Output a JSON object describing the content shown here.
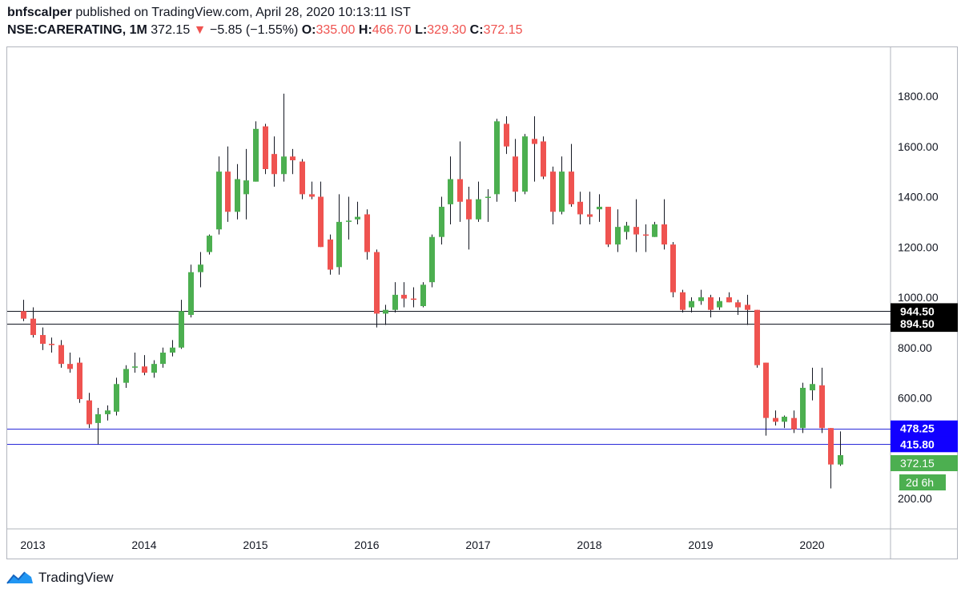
{
  "header": {
    "author": "bnfscalper",
    "published": "published on TradingView.com, April 28, 2020 10:13:11 IST",
    "symbol": "NSE:CARERATING, 1M",
    "last": "372.15",
    "arrow": "▼",
    "change": "−5.85 (−1.55%)",
    "o_label": "O:",
    "o_val": "335.00",
    "h_label": "H:",
    "h_val": "466.70",
    "l_label": "L:",
    "l_val": "329.30",
    "c_label": "C:",
    "c_val": "372.15"
  },
  "footer": {
    "brand": "TradingView"
  },
  "colors": {
    "up": "#4caf50",
    "down": "#ef5350",
    "support_black": "#131722",
    "support_blue": "#2b2bd9",
    "blue_label": "#0a00ff",
    "price_label": "#4caf50"
  },
  "chart_data": {
    "type": "candlestick",
    "interval": "1M",
    "ylim": [
      90,
      1900
    ],
    "y_ticks": [
      200,
      400,
      600,
      800,
      1000,
      1200,
      1400,
      1600,
      1800
    ],
    "y_tick_labels": [
      "200.00",
      "",
      "600.00",
      "800.00",
      "1000.00",
      "1200.00",
      "1400.00",
      "1600.00",
      "1800.00"
    ],
    "x_tick_labels": [
      {
        "label": "2013",
        "date": "2013-01"
      },
      {
        "label": "2014",
        "date": "2014-01"
      },
      {
        "label": "2015",
        "date": "2015-01"
      },
      {
        "label": "2016",
        "date": "2016-01"
      },
      {
        "label": "2017",
        "date": "2017-01"
      },
      {
        "label": "2018",
        "date": "2018-01"
      },
      {
        "label": "2019",
        "date": "2019-01"
      },
      {
        "label": "2020",
        "date": "2020-01"
      }
    ],
    "candles": [
      {
        "t": "2012-12",
        "o": 945,
        "h": 990,
        "l": 905,
        "c": 915
      },
      {
        "t": "2013-01",
        "o": 915,
        "h": 960,
        "l": 840,
        "c": 850
      },
      {
        "t": "2013-02",
        "o": 850,
        "h": 880,
        "l": 790,
        "c": 815
      },
      {
        "t": "2013-03",
        "o": 815,
        "h": 840,
        "l": 780,
        "c": 810
      },
      {
        "t": "2013-04",
        "o": 810,
        "h": 830,
        "l": 720,
        "c": 735
      },
      {
        "t": "2013-05",
        "o": 735,
        "h": 780,
        "l": 700,
        "c": 715
      },
      {
        "t": "2013-06",
        "o": 740,
        "h": 760,
        "l": 580,
        "c": 595
      },
      {
        "t": "2013-07",
        "o": 590,
        "h": 620,
        "l": 480,
        "c": 495
      },
      {
        "t": "2013-08",
        "o": 500,
        "h": 560,
        "l": 415,
        "c": 535
      },
      {
        "t": "2013-09",
        "o": 535,
        "h": 570,
        "l": 510,
        "c": 550
      },
      {
        "t": "2013-10",
        "o": 545,
        "h": 680,
        "l": 530,
        "c": 655
      },
      {
        "t": "2013-11",
        "o": 660,
        "h": 730,
        "l": 640,
        "c": 715
      },
      {
        "t": "2013-12",
        "o": 720,
        "h": 780,
        "l": 700,
        "c": 725
      },
      {
        "t": "2014-01",
        "o": 725,
        "h": 770,
        "l": 690,
        "c": 700
      },
      {
        "t": "2014-02",
        "o": 700,
        "h": 750,
        "l": 680,
        "c": 735
      },
      {
        "t": "2014-03",
        "o": 735,
        "h": 800,
        "l": 720,
        "c": 780
      },
      {
        "t": "2014-04",
        "o": 780,
        "h": 830,
        "l": 765,
        "c": 800
      },
      {
        "t": "2014-05",
        "o": 800,
        "h": 990,
        "l": 795,
        "c": 945
      },
      {
        "t": "2014-06",
        "o": 930,
        "h": 1130,
        "l": 920,
        "c": 1100
      },
      {
        "t": "2014-07",
        "o": 1100,
        "h": 1180,
        "l": 1040,
        "c": 1130
      },
      {
        "t": "2014-08",
        "o": 1180,
        "h": 1250,
        "l": 1170,
        "c": 1245
      },
      {
        "t": "2014-09",
        "o": 1270,
        "h": 1560,
        "l": 1250,
        "c": 1500
      },
      {
        "t": "2014-10",
        "o": 1500,
        "h": 1600,
        "l": 1300,
        "c": 1340
      },
      {
        "t": "2014-11",
        "o": 1340,
        "h": 1530,
        "l": 1310,
        "c": 1470
      },
      {
        "t": "2014-12",
        "o": 1410,
        "h": 1590,
        "l": 1310,
        "c": 1465
      },
      {
        "t": "2015-01",
        "o": 1460,
        "h": 1700,
        "l": 1460,
        "c": 1670
      },
      {
        "t": "2015-02",
        "o": 1680,
        "h": 1690,
        "l": 1490,
        "c": 1510
      },
      {
        "t": "2015-03",
        "o": 1570,
        "h": 1640,
        "l": 1440,
        "c": 1490
      },
      {
        "t": "2015-04",
        "o": 1490,
        "h": 1810,
        "l": 1460,
        "c": 1560
      },
      {
        "t": "2015-05",
        "o": 1560,
        "h": 1590,
        "l": 1490,
        "c": 1545
      },
      {
        "t": "2015-06",
        "o": 1540,
        "h": 1550,
        "l": 1390,
        "c": 1410
      },
      {
        "t": "2015-07",
        "o": 1410,
        "h": 1460,
        "l": 1390,
        "c": 1400
      },
      {
        "t": "2015-08",
        "o": 1400,
        "h": 1460,
        "l": 1200,
        "c": 1200
      },
      {
        "t": "2015-09",
        "o": 1230,
        "h": 1250,
        "l": 1090,
        "c": 1110
      },
      {
        "t": "2015-10",
        "o": 1120,
        "h": 1410,
        "l": 1090,
        "c": 1300
      },
      {
        "t": "2015-11",
        "o": 1300,
        "h": 1400,
        "l": 1230,
        "c": 1305
      },
      {
        "t": "2015-12",
        "o": 1310,
        "h": 1380,
        "l": 1290,
        "c": 1320
      },
      {
        "t": "2016-01",
        "o": 1330,
        "h": 1350,
        "l": 1150,
        "c": 1180
      },
      {
        "t": "2016-02",
        "o": 1180,
        "h": 1190,
        "l": 880,
        "c": 935
      },
      {
        "t": "2016-03",
        "o": 935,
        "h": 970,
        "l": 890,
        "c": 950
      },
      {
        "t": "2016-04",
        "o": 950,
        "h": 1060,
        "l": 940,
        "c": 1010
      },
      {
        "t": "2016-05",
        "o": 1010,
        "h": 1060,
        "l": 960,
        "c": 995
      },
      {
        "t": "2016-06",
        "o": 995,
        "h": 1040,
        "l": 960,
        "c": 990
      },
      {
        "t": "2016-07",
        "o": 965,
        "h": 1060,
        "l": 960,
        "c": 1050
      },
      {
        "t": "2016-08",
        "o": 1060,
        "h": 1250,
        "l": 1040,
        "c": 1240
      },
      {
        "t": "2016-09",
        "o": 1240,
        "h": 1400,
        "l": 1210,
        "c": 1360
      },
      {
        "t": "2016-10",
        "o": 1370,
        "h": 1560,
        "l": 1290,
        "c": 1470
      },
      {
        "t": "2016-11",
        "o": 1470,
        "h": 1620,
        "l": 1300,
        "c": 1380
      },
      {
        "t": "2016-12",
        "o": 1390,
        "h": 1440,
        "l": 1190,
        "c": 1310
      },
      {
        "t": "2017-01",
        "o": 1310,
        "h": 1460,
        "l": 1300,
        "c": 1390
      },
      {
        "t": "2017-02",
        "o": 1400,
        "h": 1430,
        "l": 1300,
        "c": 1400
      },
      {
        "t": "2017-03",
        "o": 1410,
        "h": 1710,
        "l": 1380,
        "c": 1700
      },
      {
        "t": "2017-04",
        "o": 1690,
        "h": 1720,
        "l": 1570,
        "c": 1600
      },
      {
        "t": "2017-05",
        "o": 1560,
        "h": 1630,
        "l": 1380,
        "c": 1420
      },
      {
        "t": "2017-06",
        "o": 1420,
        "h": 1650,
        "l": 1410,
        "c": 1640
      },
      {
        "t": "2017-07",
        "o": 1630,
        "h": 1720,
        "l": 1460,
        "c": 1610
      },
      {
        "t": "2017-08",
        "o": 1620,
        "h": 1640,
        "l": 1470,
        "c": 1480
      },
      {
        "t": "2017-09",
        "o": 1500,
        "h": 1520,
        "l": 1290,
        "c": 1340
      },
      {
        "t": "2017-10",
        "o": 1340,
        "h": 1560,
        "l": 1330,
        "c": 1500
      },
      {
        "t": "2017-11",
        "o": 1500,
        "h": 1610,
        "l": 1360,
        "c": 1370
      },
      {
        "t": "2017-12",
        "o": 1380,
        "h": 1420,
        "l": 1290,
        "c": 1330
      },
      {
        "t": "2018-01",
        "o": 1330,
        "h": 1420,
        "l": 1290,
        "c": 1320
      },
      {
        "t": "2018-02",
        "o": 1350,
        "h": 1410,
        "l": 1300,
        "c": 1360
      },
      {
        "t": "2018-03",
        "o": 1360,
        "h": 1360,
        "l": 1200,
        "c": 1210
      },
      {
        "t": "2018-04",
        "o": 1210,
        "h": 1350,
        "l": 1180,
        "c": 1280
      },
      {
        "t": "2018-05",
        "o": 1260,
        "h": 1300,
        "l": 1230,
        "c": 1285
      },
      {
        "t": "2018-06",
        "o": 1280,
        "h": 1390,
        "l": 1180,
        "c": 1250
      },
      {
        "t": "2018-07",
        "o": 1250,
        "h": 1290,
        "l": 1180,
        "c": 1245
      },
      {
        "t": "2018-08",
        "o": 1240,
        "h": 1300,
        "l": 1240,
        "c": 1290
      },
      {
        "t": "2018-09",
        "o": 1290,
        "h": 1390,
        "l": 1190,
        "c": 1210
      },
      {
        "t": "2018-10",
        "o": 1210,
        "h": 1220,
        "l": 1000,
        "c": 1020
      },
      {
        "t": "2018-11",
        "o": 1020,
        "h": 1030,
        "l": 940,
        "c": 950
      },
      {
        "t": "2018-12",
        "o": 960,
        "h": 1000,
        "l": 940,
        "c": 985
      },
      {
        "t": "2019-01",
        "o": 985,
        "h": 1030,
        "l": 970,
        "c": 1000
      },
      {
        "t": "2019-02",
        "o": 1000,
        "h": 1010,
        "l": 920,
        "c": 950
      },
      {
        "t": "2019-03",
        "o": 960,
        "h": 1000,
        "l": 950,
        "c": 985
      },
      {
        "t": "2019-04",
        "o": 1000,
        "h": 1020,
        "l": 980,
        "c": 980
      },
      {
        "t": "2019-05",
        "o": 980,
        "h": 990,
        "l": 930,
        "c": 960
      },
      {
        "t": "2019-06",
        "o": 970,
        "h": 1010,
        "l": 890,
        "c": 950
      },
      {
        "t": "2019-07",
        "o": 950,
        "h": 950,
        "l": 720,
        "c": 730
      },
      {
        "t": "2019-08",
        "o": 740,
        "h": 740,
        "l": 450,
        "c": 520
      },
      {
        "t": "2019-09",
        "o": 520,
        "h": 550,
        "l": 490,
        "c": 505
      },
      {
        "t": "2019-10",
        "o": 505,
        "h": 530,
        "l": 480,
        "c": 525
      },
      {
        "t": "2019-11",
        "o": 520,
        "h": 550,
        "l": 460,
        "c": 475
      },
      {
        "t": "2019-12",
        "o": 480,
        "h": 660,
        "l": 460,
        "c": 640
      },
      {
        "t": "2020-01",
        "o": 630,
        "h": 720,
        "l": 590,
        "c": 655
      },
      {
        "t": "2020-02",
        "o": 650,
        "h": 720,
        "l": 460,
        "c": 480
      },
      {
        "t": "2020-03",
        "o": 480,
        "h": 480,
        "l": 240,
        "c": 335
      },
      {
        "t": "2020-04",
        "o": 335,
        "h": 466.7,
        "l": 329.3,
        "c": 372.15
      }
    ],
    "hlines": [
      {
        "price": 944.5,
        "label": "944.50",
        "color": "#131722",
        "label_bg": "#000000"
      },
      {
        "price": 894.5,
        "label": "894.50",
        "color": "#131722",
        "label_bg": "#000000"
      },
      {
        "price": 478.25,
        "label": "478.25",
        "color": "#2b2bd9",
        "label_bg": "#1100ff"
      },
      {
        "price": 415.8,
        "label": "415.80",
        "color": "#2b2bd9",
        "label_bg": "#1100ff"
      }
    ],
    "last_price": {
      "price": 372.15,
      "label": "372.15",
      "countdown": "2d 6h"
    }
  }
}
